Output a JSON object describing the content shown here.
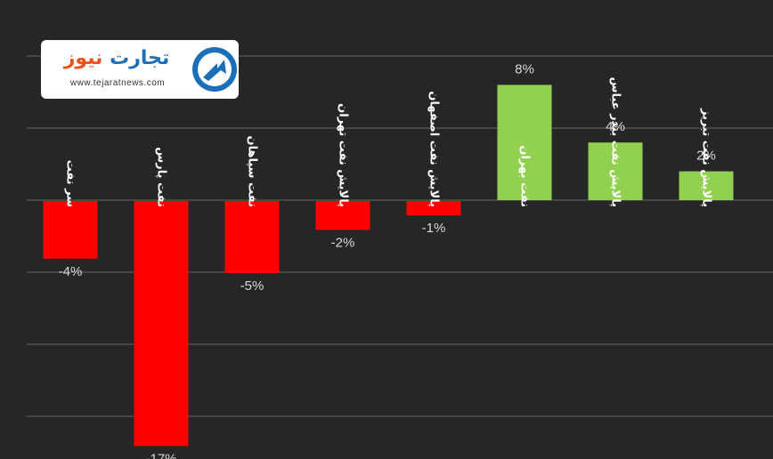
{
  "logo": {
    "name_part1": "تجارت",
    "name_part2": "نیوز",
    "url": "www.tejaratnews.com"
  },
  "colors": {
    "background": "#262626",
    "gridline": "#595959",
    "positive": "#92d050",
    "negative": "#ff0000",
    "label": "#d9d9d9"
  },
  "chart_data": {
    "type": "bar",
    "title": "",
    "xlabel": "",
    "ylabel": "",
    "categories": [
      "سر نفت",
      "نفت پارس",
      "نفت سپاهان",
      "پالایش نفت تهران",
      "پالایش نفت اصفهان",
      "نفت بهران",
      "پالایش نفت بندر عباس",
      "پالایش نفت تبریز"
    ],
    "values": [
      -4,
      -17,
      -5,
      -2,
      -1,
      8,
      4,
      2
    ],
    "value_labels": [
      "-4%",
      "-17%",
      "-5%",
      "-2%",
      "-1%",
      "8%",
      "4%",
      "2%"
    ],
    "ylim": [
      -18,
      10
    ],
    "grid": true,
    "gridline_step": 5,
    "legend": "none"
  }
}
